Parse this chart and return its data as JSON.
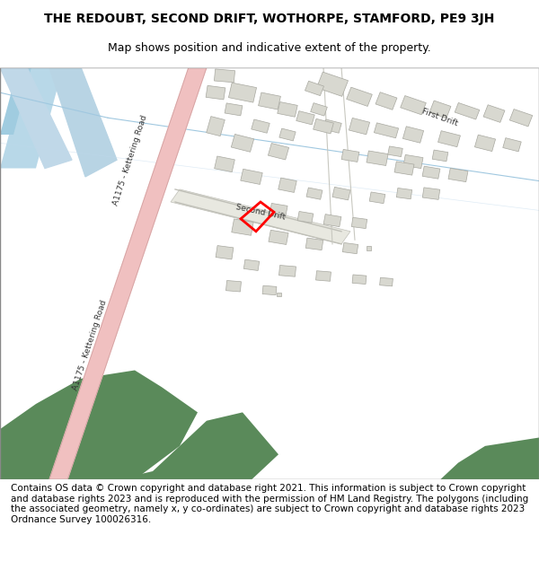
{
  "title": "THE REDOUBT, SECOND DRIFT, WOTHORPE, STAMFORD, PE9 3JH",
  "subtitle": "Map shows position and indicative extent of the property.",
  "footer": "Contains OS data © Crown copyright and database right 2021. This information is subject to Crown copyright and database rights 2023 and is reproduced with the permission of HM Land Registry. The polygons (including the associated geometry, namely x, y co-ordinates) are subject to Crown copyright and database rights 2023 Ordnance Survey 100026316.",
  "background_color": "#f5f5f0",
  "map_bg": "#f8f8f5",
  "road_color_main": "#f0c8c8",
  "road_color_minor": "#e8e8e0",
  "water_color": "#a8d0e8",
  "green_color": "#5a8a5a",
  "building_color": "#d8d8d0",
  "building_edge": "#b0b0a8",
  "plot_color": "#ff0000",
  "title_fontsize": 10,
  "subtitle_fontsize": 9,
  "footer_fontsize": 7.5
}
